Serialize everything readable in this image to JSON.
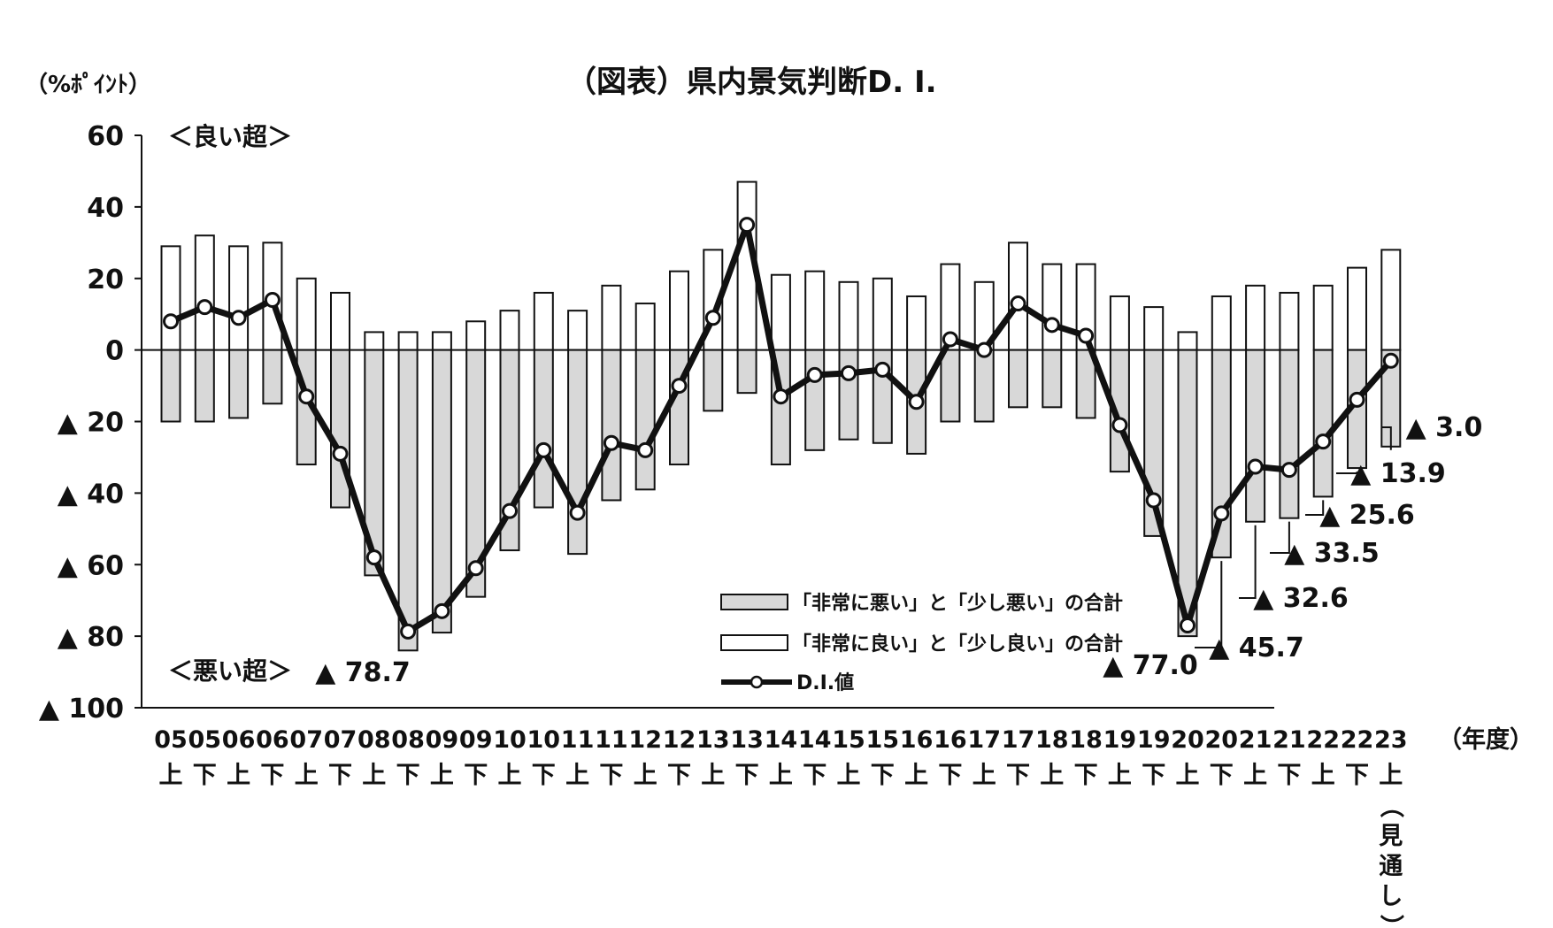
{
  "chart_data": {
    "type": "bar",
    "title": "（図表）県内景気判断D. I.",
    "ylabel": "（%ﾎﾟｲﾝﾄ）",
    "xlabel": "（年度）",
    "ylim": [
      -100,
      60
    ],
    "yticks": [
      60,
      40,
      20,
      0,
      -20,
      -40,
      -60,
      -80,
      -100
    ],
    "ytick_labels": [
      "60",
      "40",
      "20",
      "0",
      "▲ 20",
      "▲ 40",
      "▲ 60",
      "▲ 80",
      "▲ 100"
    ],
    "region_labels": {
      "good": "＜良い超＞",
      "bad": "＜悪い超＞"
    },
    "categories_year": [
      "05",
      "05",
      "06",
      "06",
      "07",
      "07",
      "08",
      "08",
      "09",
      "09",
      "10",
      "10",
      "11",
      "11",
      "12",
      "12",
      "13",
      "13",
      "14",
      "14",
      "15",
      "15",
      "16",
      "16",
      "17",
      "17",
      "18",
      "18",
      "19",
      "19",
      "20",
      "20",
      "21",
      "21",
      "22",
      "22",
      "23"
    ],
    "categories_half": [
      "上",
      "下",
      "上",
      "下",
      "上",
      "下",
      "上",
      "下",
      "上",
      "下",
      "上",
      "下",
      "上",
      "下",
      "上",
      "下",
      "上",
      "下",
      "上",
      "下",
      "上",
      "下",
      "上",
      "下",
      "上",
      "下",
      "上",
      "下",
      "上",
      "下",
      "上",
      "下",
      "上",
      "下",
      "上",
      "下",
      "上"
    ],
    "forecast_note": "（見通し）",
    "series": [
      {
        "name": "「非常に悪い」と「少し悪い」の合計",
        "kind": "bar",
        "color": "#d8d8d8",
        "values": [
          -20,
          -20,
          -19,
          -15,
          -32,
          -44,
          -63,
          -84,
          -79,
          -69,
          -56,
          -44,
          -57,
          -42,
          -39,
          -32,
          -17,
          -12,
          -32,
          -28,
          -25,
          -26,
          -29,
          -20,
          -20,
          -16,
          -16,
          -19,
          -34,
          -52,
          -80,
          -58,
          -48,
          -47,
          -41,
          -33,
          -27
        ]
      },
      {
        "name": "「非常に良い」と「少し良い」の合計",
        "kind": "bar",
        "color": "#ffffff",
        "values": [
          29,
          32,
          29,
          30,
          20,
          16,
          5,
          5,
          5,
          8,
          11,
          16,
          11,
          18,
          13,
          22,
          28,
          47,
          21,
          22,
          19,
          20,
          15,
          24,
          19,
          30,
          24,
          24,
          15,
          12,
          5,
          15,
          18,
          16,
          18,
          23,
          28
        ]
      },
      {
        "name": "D.I.値",
        "kind": "line",
        "color": "#111111",
        "values": [
          8,
          12,
          9,
          14,
          -13,
          -29,
          -58,
          -78.7,
          -73,
          -61,
          -45,
          -28,
          -45.5,
          -26,
          -28,
          -10,
          9,
          35,
          -13,
          -7,
          -6.5,
          -5.5,
          -14.5,
          3,
          0,
          13,
          7,
          4,
          -21,
          -42,
          -77,
          -45.7,
          -32.6,
          -33.5,
          -25.6,
          -13.9,
          -3.0
        ]
      }
    ],
    "annotations": [
      {
        "index": 7,
        "text": "▲ 78.7"
      },
      {
        "index": 30,
        "text": "▲ 77.0"
      },
      {
        "index": 31,
        "text": "▲ 45.7"
      },
      {
        "index": 32,
        "text": "▲ 32.6"
      },
      {
        "index": 33,
        "text": "▲ 33.5"
      },
      {
        "index": 34,
        "text": "▲ 25.6"
      },
      {
        "index": 35,
        "text": "▲ 13.9"
      },
      {
        "index": 36,
        "text": "▲ 3.0"
      }
    ],
    "legend_position": "bottom-center-right"
  }
}
